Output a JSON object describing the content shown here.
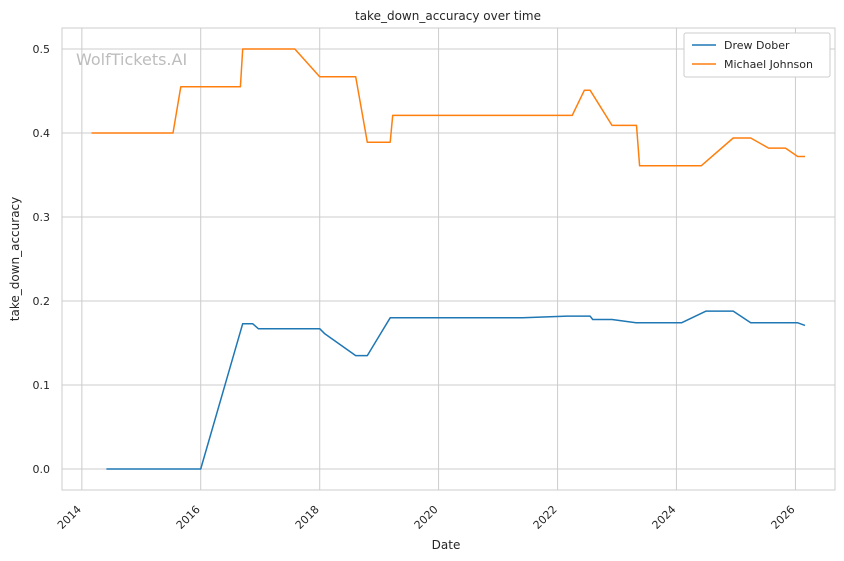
{
  "chart_data": {
    "type": "line",
    "title": "take_down_accuracy over time",
    "xlabel": "Date",
    "ylabel": "take_down_accuracy",
    "watermark": "WolfTickets.AI",
    "x_ticks": [
      "2014",
      "2016",
      "2018",
      "2020",
      "2022",
      "2024",
      "2026"
    ],
    "y_ticks": [
      "0.0",
      "0.1",
      "0.2",
      "0.3",
      "0.4",
      "0.5"
    ],
    "xlim": [
      "2013-09-01",
      "2026-09-01"
    ],
    "ylim": [
      -0.025,
      0.525
    ],
    "grid": true,
    "legend_position": "top-right",
    "series": [
      {
        "name": "Drew Dober",
        "color": "#1f77b4",
        "points": [
          [
            "2014-06-01",
            0.0
          ],
          [
            "2016-01-01",
            0.0
          ],
          [
            "2016-09-15",
            0.173
          ],
          [
            "2016-11-15",
            0.173
          ],
          [
            "2016-12-20",
            0.167
          ],
          [
            "2018-01-01",
            0.167
          ],
          [
            "2018-02-01",
            0.161
          ],
          [
            "2018-08-10",
            0.135
          ],
          [
            "2018-10-20",
            0.135
          ],
          [
            "2019-03-10",
            0.18
          ],
          [
            "2021-06-01",
            0.18
          ],
          [
            "2022-03-01",
            0.182
          ],
          [
            "2022-07-20",
            0.182
          ],
          [
            "2022-08-05",
            0.178
          ],
          [
            "2022-12-01",
            0.178
          ],
          [
            "2023-05-01",
            0.174
          ],
          [
            "2024-02-01",
            0.174
          ],
          [
            "2024-07-01",
            0.188
          ],
          [
            "2024-12-15",
            0.188
          ],
          [
            "2025-04-01",
            0.174
          ],
          [
            "2026-01-15",
            0.174
          ],
          [
            "2026-03-01",
            0.171
          ]
        ]
      },
      {
        "name": "Michael Johnson",
        "color": "#ff7f0e",
        "points": [
          [
            "2014-03-01",
            0.4
          ],
          [
            "2015-07-15",
            0.4
          ],
          [
            "2015-09-01",
            0.455
          ],
          [
            "2016-09-01",
            0.455
          ],
          [
            "2016-09-15",
            0.5
          ],
          [
            "2017-08-01",
            0.5
          ],
          [
            "2018-01-01",
            0.467
          ],
          [
            "2018-08-10",
            0.467
          ],
          [
            "2018-10-20",
            0.389
          ],
          [
            "2019-03-10",
            0.389
          ],
          [
            "2019-03-25",
            0.421
          ],
          [
            "2022-04-01",
            0.421
          ],
          [
            "2022-06-15",
            0.451
          ],
          [
            "2022-07-20",
            0.451
          ],
          [
            "2022-12-01",
            0.409
          ],
          [
            "2023-05-01",
            0.409
          ],
          [
            "2023-05-20",
            0.361
          ],
          [
            "2024-06-01",
            0.361
          ],
          [
            "2024-12-15",
            0.394
          ],
          [
            "2025-04-01",
            0.394
          ],
          [
            "2025-07-20",
            0.382
          ],
          [
            "2025-11-01",
            0.382
          ],
          [
            "2026-01-15",
            0.372
          ],
          [
            "2026-03-01",
            0.372
          ]
        ]
      }
    ]
  }
}
